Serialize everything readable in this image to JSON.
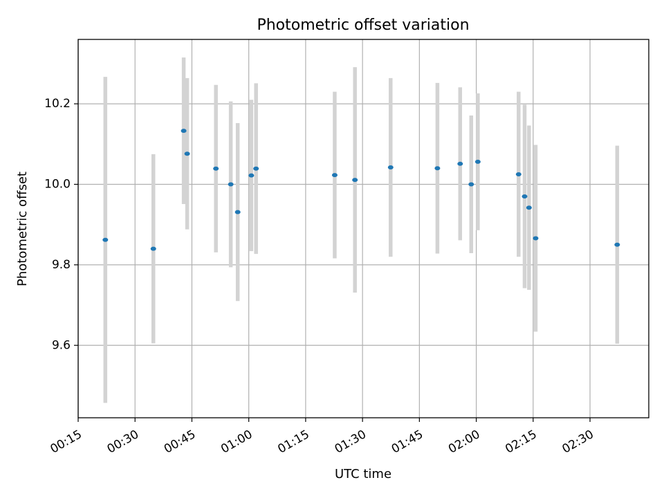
{
  "chart_data": {
    "type": "scatter",
    "title": "Photometric offset variation",
    "xlabel": "UTC time",
    "ylabel": "Photometric offset",
    "x_tick_labels": [
      "00:15",
      "00:30",
      "00:45",
      "01:00",
      "01:15",
      "01:30",
      "01:45",
      "02:00",
      "02:15",
      "02:30"
    ],
    "x_ticks_minutes": [
      15,
      30,
      45,
      60,
      75,
      90,
      105,
      120,
      135,
      150
    ],
    "y_tick_labels": [
      "9.6",
      "9.8",
      "10.0",
      "10.2"
    ],
    "y_ticks": [
      9.6,
      9.8,
      10.0,
      10.2
    ],
    "xlim_minutes": [
      15,
      165.5
    ],
    "ylim": [
      9.42,
      10.36
    ],
    "grid": true,
    "colors": {
      "point": "#1f77b4",
      "errorbar": "#d3d3d3",
      "grid": "#b0b0b0",
      "axes": "#000000"
    },
    "series": [
      {
        "points": [
          {
            "t": "00:22:10",
            "y": 9.862,
            "err": 0.405
          },
          {
            "t": "00:34:50",
            "y": 9.84,
            "err": 0.235
          },
          {
            "t": "00:42:50",
            "y": 10.133,
            "err": 0.182
          },
          {
            "t": "00:43:45",
            "y": 10.076,
            "err": 0.188
          },
          {
            "t": "00:51:20",
            "y": 10.039,
            "err": 0.208
          },
          {
            "t": "00:55:15",
            "y": 10.0,
            "err": 0.206
          },
          {
            "t": "00:57:05",
            "y": 9.931,
            "err": 0.221
          },
          {
            "t": "01:00:40",
            "y": 10.022,
            "err": 0.188
          },
          {
            "t": "01:01:55",
            "y": 10.039,
            "err": 0.212
          },
          {
            "t": "01:22:40",
            "y": 10.023,
            "err": 0.207
          },
          {
            "t": "01:28:00",
            "y": 10.011,
            "err": 0.28
          },
          {
            "t": "01:37:25",
            "y": 10.042,
            "err": 0.222
          },
          {
            "t": "01:49:45",
            "y": 10.04,
            "err": 0.212
          },
          {
            "t": "01:55:45",
            "y": 10.051,
            "err": 0.19
          },
          {
            "t": "01:58:40",
            "y": 10.0,
            "err": 0.171
          },
          {
            "t": "02:00:25",
            "y": 10.056,
            "err": 0.17
          },
          {
            "t": "02:11:10",
            "y": 10.025,
            "err": 0.205
          },
          {
            "t": "02:12:45",
            "y": 9.97,
            "err": 0.228
          },
          {
            "t": "02:13:55",
            "y": 9.942,
            "err": 0.204
          },
          {
            "t": "02:15:40",
            "y": 9.866,
            "err": 0.232
          },
          {
            "t": "02:37:10",
            "y": 9.85,
            "err": 0.246
          }
        ]
      }
    ]
  }
}
